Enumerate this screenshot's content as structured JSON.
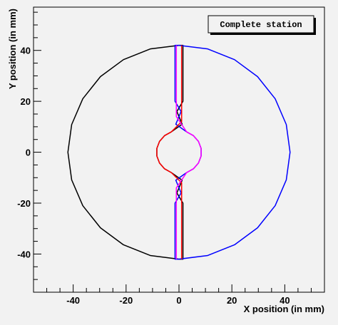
{
  "chart_data": {
    "type": "line",
    "title": "Complete station",
    "x_label": "X position (in mm)",
    "y_label": "Y position (in mm)",
    "xlim": [
      -55,
      55
    ],
    "ylim": [
      -55,
      57
    ],
    "xticks": [
      -40,
      -20,
      0,
      20,
      40
    ],
    "yticks": [
      -40,
      -20,
      0,
      20,
      40
    ],
    "xminorticks": [
      -50,
      -45,
      -35,
      -30,
      -25,
      -15,
      -10,
      -5,
      5,
      10,
      15,
      25,
      30,
      35,
      45,
      50
    ],
    "yminorticks": [
      -50,
      -45,
      -35,
      -30,
      -25,
      -15,
      -10,
      -5,
      5,
      10,
      15,
      25,
      30,
      35,
      45,
      50,
      55
    ],
    "series": [
      {
        "color": "#000000",
        "x": [
          0,
          -10.87,
          -21,
          -29.7,
          -36.37,
          -40.57,
          -42,
          -40.57,
          -36.37,
          -29.7,
          -21,
          -10.87,
          0,
          1.5,
          1.5,
          -0.8,
          1.2,
          -2.91,
          -5.46,
          -7.36,
          -8.37,
          -8.37,
          -7.36,
          -5.46,
          -2.91,
          1.2,
          -0.8,
          1.5,
          1.5,
          0
        ],
        "values": [
          42,
          40.57,
          36.37,
          29.7,
          21,
          10.87,
          0,
          -10.87,
          -21,
          -29.7,
          -36.37,
          -40.57,
          -42,
          -42,
          -20,
          -16,
          -11,
          -7.99,
          -6.51,
          -4.25,
          -1.48,
          1.48,
          4.25,
          6.51,
          7.99,
          11,
          16,
          20,
          42,
          42
        ]
      },
      {
        "color": "#0000ff",
        "x": [
          0,
          10.87,
          21,
          29.7,
          36.37,
          40.57,
          42,
          40.57,
          36.37,
          29.7,
          21,
          10.87,
          0,
          -1.5,
          -1.5,
          0.8,
          -1.2,
          2.91,
          5.46,
          7.36,
          8.37,
          8.37,
          7.36,
          5.46,
          2.91,
          -1.2,
          0.8,
          -1.5,
          -1.5,
          0
        ],
        "values": [
          42,
          40.57,
          36.37,
          29.7,
          21,
          10.87,
          0,
          -10.87,
          -21,
          -29.7,
          -36.37,
          -40.57,
          -42,
          -42,
          -20,
          -16,
          -11,
          -7.99,
          -6.51,
          -4.25,
          -1.48,
          1.48,
          4.25,
          6.51,
          7.99,
          11,
          16,
          20,
          42,
          42
        ]
      },
      {
        "color": "#ff0000",
        "x": [
          1,
          1,
          -2.91,
          -5.46,
          -7.36,
          -8.37,
          -8.37,
          -7.36,
          -5.46,
          -2.91,
          1,
          1
        ],
        "values": [
          42,
          12,
          7.99,
          6.51,
          4.25,
          1.48,
          -1.48,
          -4.25,
          -6.51,
          -7.99,
          -12,
          -42
        ]
      },
      {
        "color": "#ff00ff",
        "x": [
          -1,
          -1,
          2.91,
          5.46,
          7.36,
          8.37,
          8.37,
          7.36,
          5.46,
          2.91,
          -1,
          -1
        ],
        "values": [
          42,
          14,
          7.99,
          6.51,
          4.25,
          1.48,
          -1.48,
          -4.25,
          -6.51,
          -7.99,
          -14,
          -42
        ]
      }
    ]
  }
}
